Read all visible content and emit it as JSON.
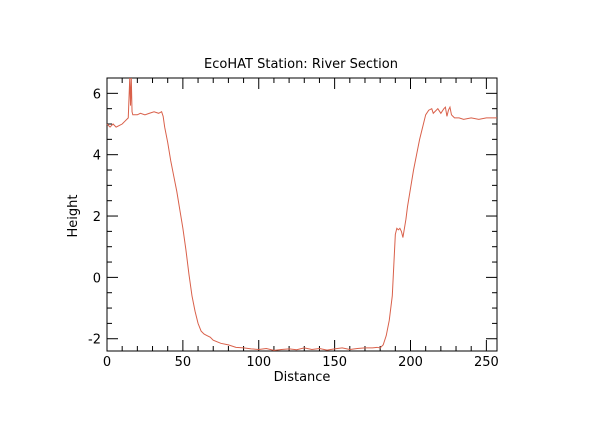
{
  "chart_data": {
    "type": "line",
    "title": "EcoHAT Station: River Section",
    "xlabel": "Distance",
    "ylabel": "Height",
    "xlim": [
      0,
      257
    ],
    "ylim": [
      -2.4,
      6.5
    ],
    "xticks": [
      0,
      50,
      100,
      150,
      200,
      250
    ],
    "xtick_labels": [
      "0",
      "50",
      "100",
      "150",
      "200",
      "250"
    ],
    "yticks": [
      -2,
      0,
      2,
      4,
      6
    ],
    "ytick_labels": [
      "-2",
      "0",
      "2",
      "4",
      "6"
    ],
    "x_minor_step": 10,
    "y_minor_step": 0.5,
    "grid": false,
    "line_color": "#d9604a",
    "series": [
      {
        "x": [
          0,
          2,
          4,
          6,
          8,
          10,
          12,
          14,
          15,
          15.5,
          16,
          16.5,
          17,
          18,
          20,
          22,
          25,
          28,
          31,
          34,
          36,
          37,
          38,
          40,
          42,
          44,
          46,
          48,
          50,
          52,
          54,
          56,
          58,
          60,
          62,
          64,
          66,
          68,
          70,
          75,
          80,
          85,
          90,
          95,
          100,
          105,
          110,
          115,
          120,
          125,
          130,
          135,
          140,
          145,
          150,
          155,
          160,
          165,
          170,
          175,
          178,
          180,
          182,
          184,
          186,
          188,
          189,
          190,
          191,
          192,
          193,
          194,
          195,
          196,
          197,
          198,
          200,
          202,
          204,
          206,
          208,
          210,
          212,
          214,
          215,
          216,
          218,
          220,
          222,
          223,
          224,
          225,
          226,
          227,
          228,
          229,
          230,
          232,
          235,
          240,
          245,
          250,
          257
        ],
        "y": [
          5.0,
          4.9,
          5.0,
          4.9,
          4.95,
          5.0,
          5.1,
          5.2,
          6.5,
          5.6,
          6.5,
          5.4,
          5.3,
          5.3,
          5.3,
          5.35,
          5.3,
          5.35,
          5.4,
          5.35,
          5.4,
          5.25,
          4.9,
          4.4,
          3.8,
          3.3,
          2.8,
          2.2,
          1.6,
          0.9,
          0.1,
          -0.6,
          -1.1,
          -1.5,
          -1.75,
          -1.85,
          -1.9,
          -1.95,
          -2.05,
          -2.15,
          -2.2,
          -2.28,
          -2.3,
          -2.33,
          -2.35,
          -2.32,
          -2.38,
          -2.35,
          -2.33,
          -2.36,
          -2.3,
          -2.35,
          -2.32,
          -2.37,
          -2.33,
          -2.3,
          -2.35,
          -2.32,
          -2.3,
          -2.3,
          -2.28,
          -2.3,
          -2.2,
          -1.9,
          -1.4,
          -0.6,
          0.4,
          1.4,
          1.6,
          1.55,
          1.6,
          1.5,
          1.3,
          1.6,
          1.9,
          2.3,
          2.9,
          3.5,
          4.0,
          4.5,
          4.9,
          5.3,
          5.45,
          5.5,
          5.35,
          5.4,
          5.5,
          5.35,
          5.5,
          5.55,
          5.25,
          5.45,
          5.55,
          5.3,
          5.25,
          5.2,
          5.2,
          5.2,
          5.15,
          5.2,
          5.15,
          5.2,
          5.2
        ]
      }
    ]
  }
}
